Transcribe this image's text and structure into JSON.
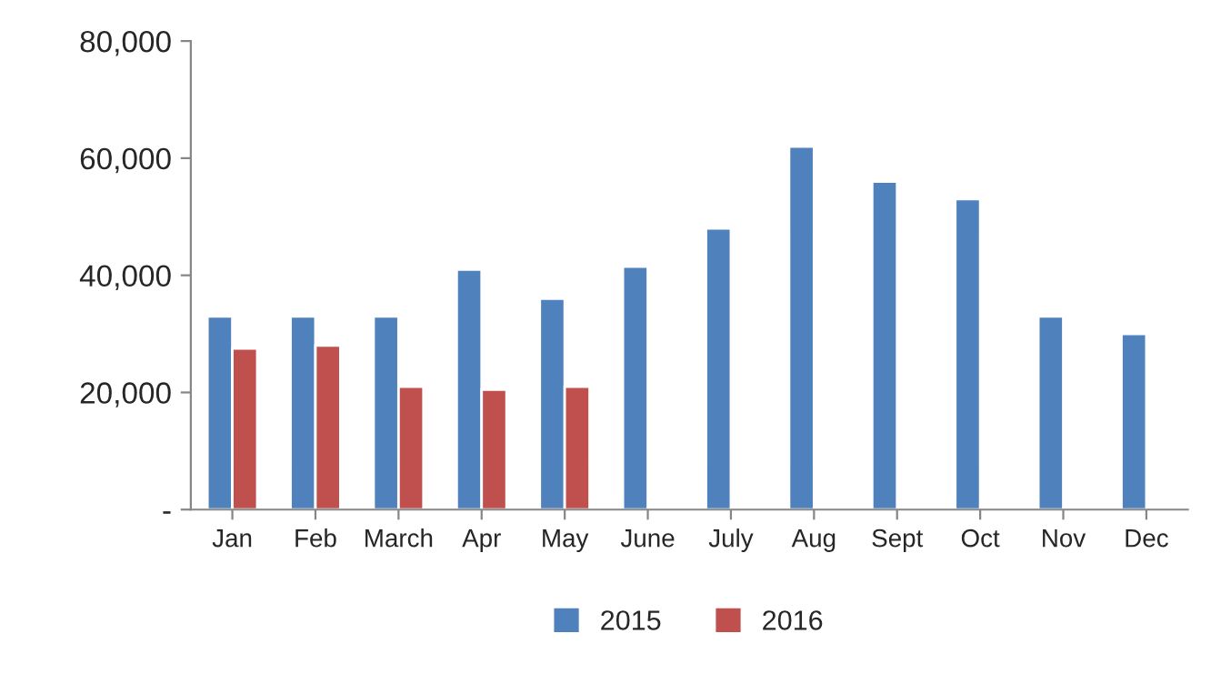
{
  "chart_data": {
    "type": "bar",
    "categories": [
      "Jan",
      "Feb",
      "March",
      "Apr",
      "May",
      "June",
      "July",
      "Aug",
      "Sept",
      "Oct",
      "Nov",
      "Dec"
    ],
    "series": [
      {
        "name": "2015",
        "color": "#4f81bd",
        "values": [
          33000,
          33000,
          33000,
          41000,
          36000,
          41500,
          48000,
          62000,
          56000,
          53000,
          33000,
          30000
        ]
      },
      {
        "name": "2016",
        "color": "#c0504d",
        "values": [
          27500,
          28000,
          21000,
          20500,
          21000,
          null,
          null,
          null,
          null,
          null,
          null,
          null
        ]
      }
    ],
    "ylim": [
      0,
      80000
    ],
    "yticks": [
      {
        "value": 0,
        "label": "-"
      },
      {
        "value": 20000,
        "label": "20,000"
      },
      {
        "value": 40000,
        "label": "40,000"
      },
      {
        "value": 60000,
        "label": "60,000"
      },
      {
        "value": 80000,
        "label": "80,000"
      }
    ],
    "grid": false,
    "legend": "bottom"
  }
}
